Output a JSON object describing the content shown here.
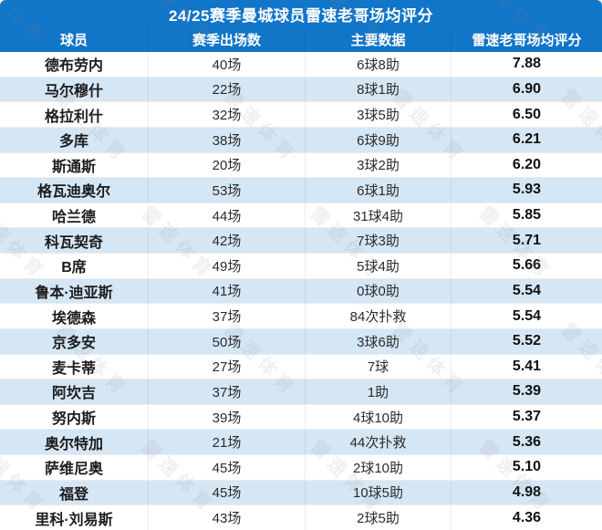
{
  "title": "24/25赛季曼城球员雷速老哥场均评分",
  "watermark_text": "雷速体育",
  "colors": {
    "header_bg": "#1175C8",
    "header_text": "#FFFFFF",
    "alt_row_bg": "#D5E6F5",
    "body_text": "#222222"
  },
  "chart_data": {
    "type": "table",
    "title": "24/25赛季曼城球员雷速老哥场均评分",
    "columns": [
      "球员",
      "赛季出场数",
      "主要数据",
      "雷速老哥场均评分"
    ],
    "rows": [
      [
        "德布劳内",
        "40场",
        "6球8助",
        "7.88"
      ],
      [
        "马尔穆什",
        "22场",
        "8球1助",
        "6.90"
      ],
      [
        "格拉利什",
        "32场",
        "3球5助",
        "6.50"
      ],
      [
        "多库",
        "38场",
        "6球9助",
        "6.21"
      ],
      [
        "斯通斯",
        "20场",
        "3球2助",
        "6.20"
      ],
      [
        "格瓦迪奥尔",
        "53场",
        "6球1助",
        "5.93"
      ],
      [
        "哈兰德",
        "44场",
        "31球4助",
        "5.85"
      ],
      [
        "科瓦契奇",
        "42场",
        "7球3助",
        "5.71"
      ],
      [
        "B席",
        "49场",
        "5球4助",
        "5.66"
      ],
      [
        "鲁本·迪亚斯",
        "41场",
        "0球0助",
        "5.54"
      ],
      [
        "埃德森",
        "37场",
        "84次扑救",
        "5.54"
      ],
      [
        "京多安",
        "50场",
        "3球6助",
        "5.52"
      ],
      [
        "麦卡蒂",
        "27场",
        "7球",
        "5.41"
      ],
      [
        "阿坎吉",
        "37场",
        "1助",
        "5.39"
      ],
      [
        "努内斯",
        "39场",
        "4球10助",
        "5.37"
      ],
      [
        "奥尔特加",
        "21场",
        "44次扑救",
        "5.36"
      ],
      [
        "萨维尼奥",
        "45场",
        "2球10助",
        "5.10"
      ],
      [
        "福登",
        "45场",
        "10球5助",
        "4.98"
      ],
      [
        "里科·刘易斯",
        "43场",
        "2球5助",
        "4.36"
      ]
    ]
  }
}
